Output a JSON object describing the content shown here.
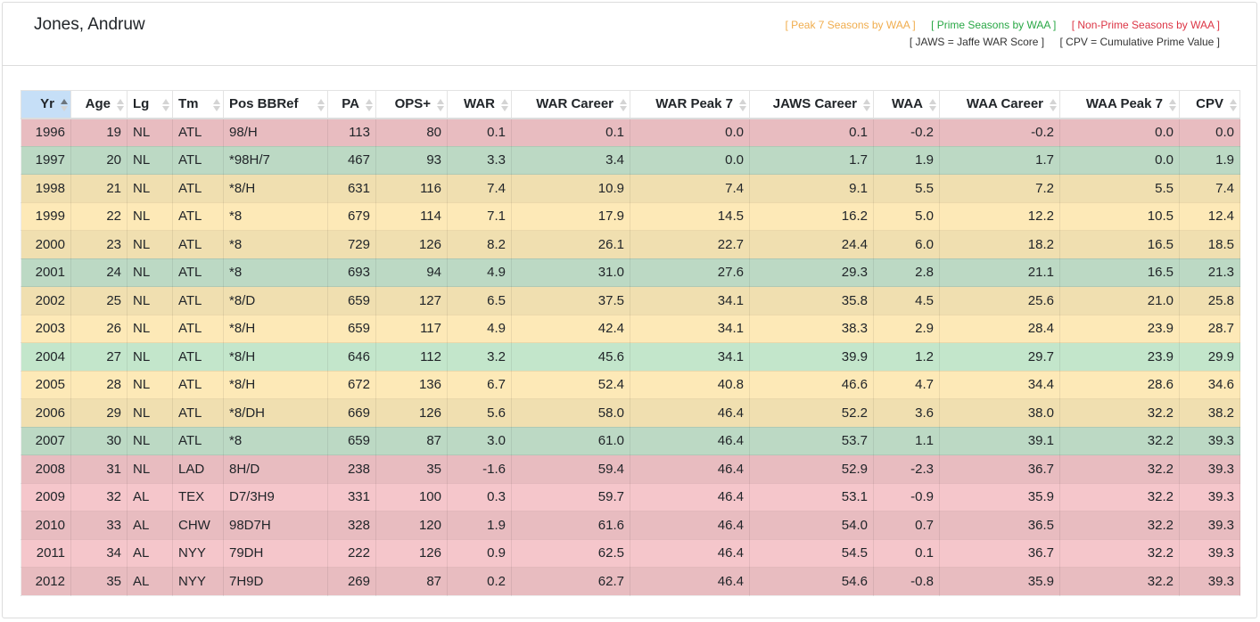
{
  "player_name": "Jones, Andruw",
  "legend": {
    "peak": "[ Peak 7 Seasons by WAA ]",
    "prime": "[ Prime Seasons by WAA ]",
    "non_prime": "[ Non-Prime Seasons by WAA ]",
    "jaws": "[ JAWS = Jaffe WAR Score ]",
    "cpv": "[ CPV = Cumulative Prime Value ]"
  },
  "colors": {
    "peak": "#f0ad4e",
    "prime": "#28a745",
    "non_prime": "#dc3545",
    "sorted_header": "#c6dff7"
  },
  "table": {
    "sorted_column": "Yr",
    "sort_direction": "ascending",
    "columns": [
      "Yr",
      "Age",
      "Lg",
      "Tm",
      "Pos BBRef",
      "PA",
      "OPS+",
      "WAR",
      "WAR Career",
      "WAR Peak 7",
      "JAWS Career",
      "WAA",
      "WAA Career",
      "WAA Peak 7",
      "CPV"
    ],
    "rows": [
      {
        "category": "non-prime",
        "cells": [
          "1996",
          "19",
          "NL",
          "ATL",
          "98/H",
          "113",
          "80",
          "0.1",
          "0.1",
          "0.0",
          "0.1",
          "-0.2",
          "-0.2",
          "0.0",
          "0.0"
        ]
      },
      {
        "category": "prime",
        "cells": [
          "1997",
          "20",
          "NL",
          "ATL",
          "*98H/7",
          "467",
          "93",
          "3.3",
          "3.4",
          "0.0",
          "1.7",
          "1.9",
          "1.7",
          "0.0",
          "1.9"
        ]
      },
      {
        "category": "peak",
        "cells": [
          "1998",
          "21",
          "NL",
          "ATL",
          "*8/H",
          "631",
          "116",
          "7.4",
          "10.9",
          "7.4",
          "9.1",
          "5.5",
          "7.2",
          "5.5",
          "7.4"
        ]
      },
      {
        "category": "peak",
        "cells": [
          "1999",
          "22",
          "NL",
          "ATL",
          "*8",
          "679",
          "114",
          "7.1",
          "17.9",
          "14.5",
          "16.2",
          "5.0",
          "12.2",
          "10.5",
          "12.4"
        ]
      },
      {
        "category": "peak",
        "cells": [
          "2000",
          "23",
          "NL",
          "ATL",
          "*8",
          "729",
          "126",
          "8.2",
          "26.1",
          "22.7",
          "24.4",
          "6.0",
          "18.2",
          "16.5",
          "18.5"
        ]
      },
      {
        "category": "prime",
        "cells": [
          "2001",
          "24",
          "NL",
          "ATL",
          "*8",
          "693",
          "94",
          "4.9",
          "31.0",
          "27.6",
          "29.3",
          "2.8",
          "21.1",
          "16.5",
          "21.3"
        ]
      },
      {
        "category": "peak",
        "cells": [
          "2002",
          "25",
          "NL",
          "ATL",
          "*8/D",
          "659",
          "127",
          "6.5",
          "37.5",
          "34.1",
          "35.8",
          "4.5",
          "25.6",
          "21.0",
          "25.8"
        ]
      },
      {
        "category": "peak",
        "cells": [
          "2003",
          "26",
          "NL",
          "ATL",
          "*8/H",
          "659",
          "117",
          "4.9",
          "42.4",
          "34.1",
          "38.3",
          "2.9",
          "28.4",
          "23.9",
          "28.7"
        ]
      },
      {
        "category": "prime",
        "cells": [
          "2004",
          "27",
          "NL",
          "ATL",
          "*8/H",
          "646",
          "112",
          "3.2",
          "45.6",
          "34.1",
          "39.9",
          "1.2",
          "29.7",
          "23.9",
          "29.9"
        ]
      },
      {
        "category": "peak",
        "cells": [
          "2005",
          "28",
          "NL",
          "ATL",
          "*8/H",
          "672",
          "136",
          "6.7",
          "52.4",
          "40.8",
          "46.6",
          "4.7",
          "34.4",
          "28.6",
          "34.6"
        ]
      },
      {
        "category": "peak",
        "cells": [
          "2006",
          "29",
          "NL",
          "ATL",
          "*8/DH",
          "669",
          "126",
          "5.6",
          "58.0",
          "46.4",
          "52.2",
          "3.6",
          "38.0",
          "32.2",
          "38.2"
        ]
      },
      {
        "category": "prime",
        "cells": [
          "2007",
          "30",
          "NL",
          "ATL",
          "*8",
          "659",
          "87",
          "3.0",
          "61.0",
          "46.4",
          "53.7",
          "1.1",
          "39.1",
          "32.2",
          "39.3"
        ]
      },
      {
        "category": "non-prime",
        "cells": [
          "2008",
          "31",
          "NL",
          "LAD",
          "8H/D",
          "238",
          "35",
          "-1.6",
          "59.4",
          "46.4",
          "52.9",
          "-2.3",
          "36.7",
          "32.2",
          "39.3"
        ]
      },
      {
        "category": "non-prime",
        "cells": [
          "2009",
          "32",
          "AL",
          "TEX",
          "D7/3H9",
          "331",
          "100",
          "0.3",
          "59.7",
          "46.4",
          "53.1",
          "-0.9",
          "35.9",
          "32.2",
          "39.3"
        ]
      },
      {
        "category": "non-prime",
        "cells": [
          "2010",
          "33",
          "AL",
          "CHW",
          "98D7H",
          "328",
          "120",
          "1.9",
          "61.6",
          "46.4",
          "54.0",
          "0.7",
          "36.5",
          "32.2",
          "39.3"
        ]
      },
      {
        "category": "non-prime",
        "cells": [
          "2011",
          "34",
          "AL",
          "NYY",
          "79DH",
          "222",
          "126",
          "0.9",
          "62.5",
          "46.4",
          "54.5",
          "0.1",
          "36.7",
          "32.2",
          "39.3"
        ]
      },
      {
        "category": "non-prime",
        "cells": [
          "2012",
          "35",
          "AL",
          "NYY",
          "7H9D",
          "269",
          "87",
          "0.2",
          "62.7",
          "46.4",
          "54.6",
          "-0.8",
          "35.9",
          "32.2",
          "39.3"
        ]
      }
    ]
  }
}
